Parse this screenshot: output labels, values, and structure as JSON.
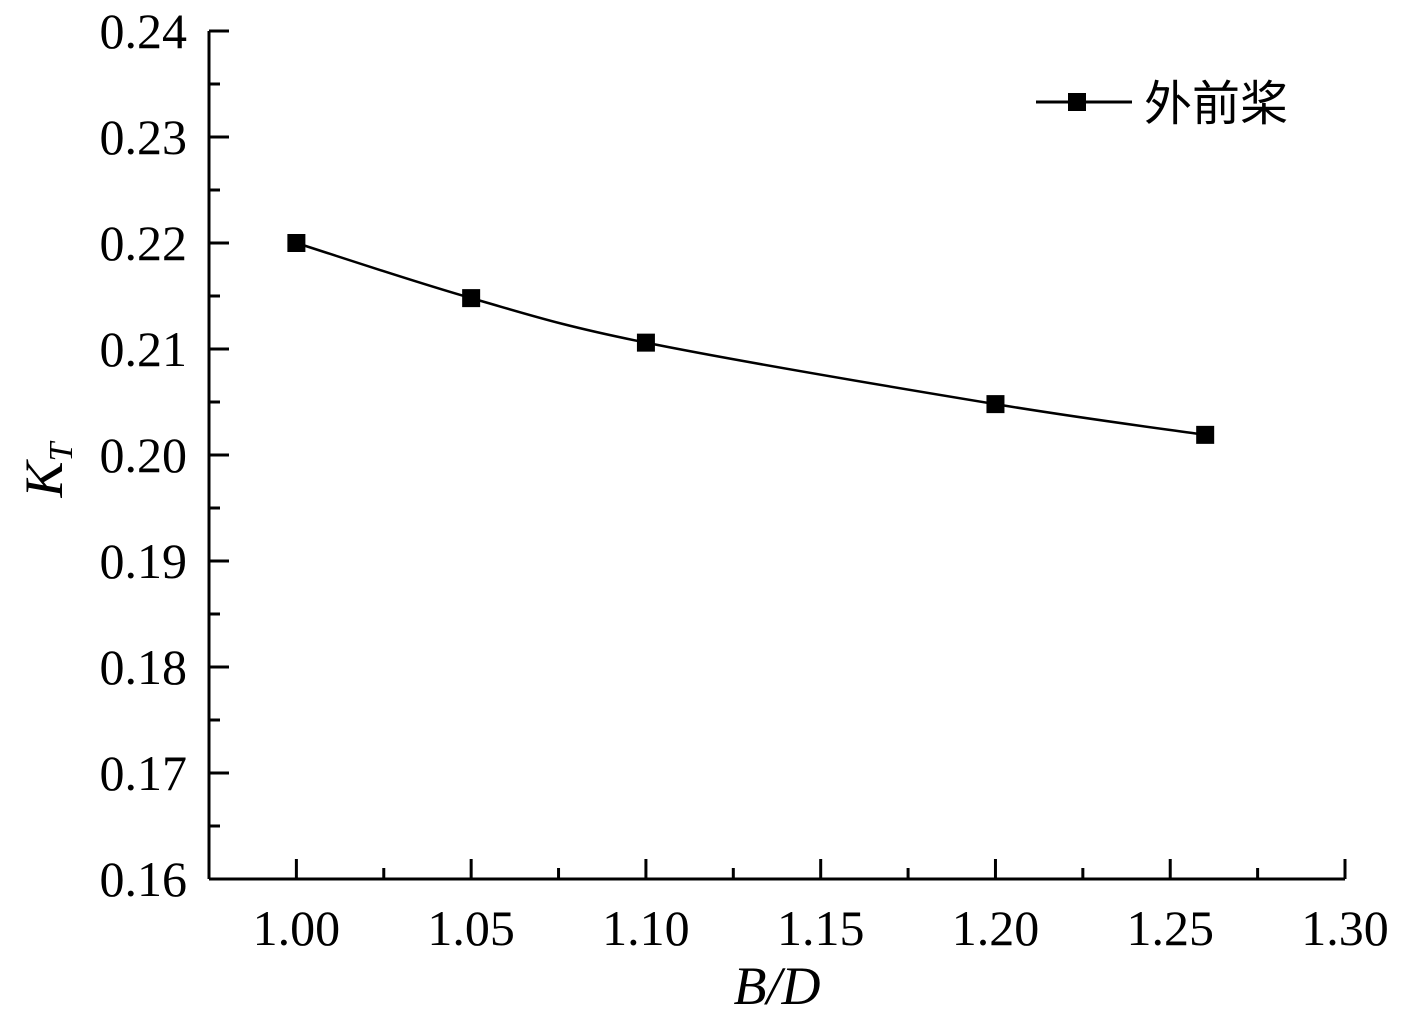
{
  "chart_data": {
    "type": "line",
    "x": [
      1.0,
      1.05,
      1.1,
      1.2,
      1.26
    ],
    "series": [
      {
        "name": "外前桨",
        "values": [
          0.22,
          0.2148,
          0.2106,
          0.2048,
          0.2019
        ]
      }
    ],
    "xlabel": {
      "main": "B/D"
    },
    "ylabel": {
      "main": "K",
      "sub": "T"
    },
    "xlim": [
      0.975,
      1.3
    ],
    "ylim": [
      0.16,
      0.24
    ],
    "x_ticks": [
      "1.00",
      "1.05",
      "1.10",
      "1.15",
      "1.20",
      "1.25",
      "1.30"
    ],
    "x_tick_values": [
      1.0,
      1.05,
      1.1,
      1.15,
      1.2,
      1.25,
      1.3
    ],
    "y_ticks": [
      "0.16",
      "0.17",
      "0.18",
      "0.19",
      "0.20",
      "0.21",
      "0.22",
      "0.23",
      "0.24"
    ],
    "y_tick_values": [
      0.16,
      0.17,
      0.18,
      0.19,
      0.2,
      0.21,
      0.22,
      0.23,
      0.24
    ],
    "legend": {
      "position": "top-right",
      "label": "外前桨"
    },
    "grid": false,
    "colors": {
      "line": "#000000",
      "marker": "#000000",
      "axis": "#000000"
    }
  }
}
